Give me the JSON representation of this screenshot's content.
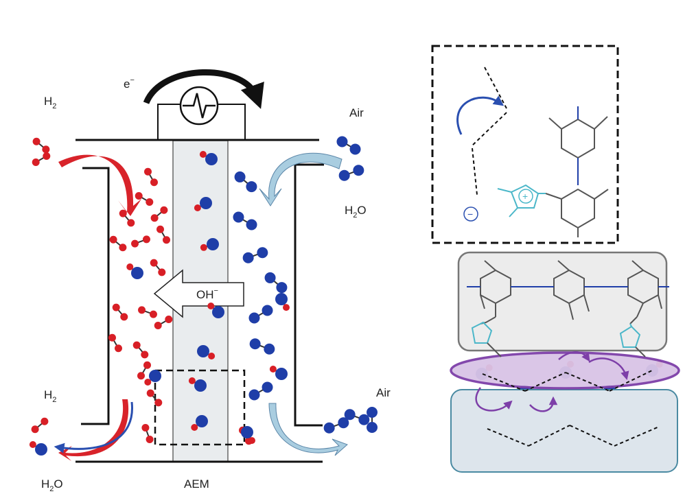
{
  "labels": {
    "h2_top": "H",
    "h2_top_sub": "2",
    "electron": "e",
    "electron_sup": "−",
    "air_top": "Air",
    "h2o_right": "H",
    "h2o_right_sub": "2",
    "h2o_right_o": "O",
    "h2_bottom": "H",
    "h2_bottom_sub": "2",
    "air_bottom": "Air",
    "h2o_bottom": "H",
    "h2o_bottom_sub": "2",
    "h2o_bottom_o": "O",
    "aem": "AEM",
    "oh": "OH",
    "oh_sup": "−",
    "cation": "+",
    "anion": "−"
  },
  "colors": {
    "oxygen": "#1f3ea8",
    "hydrogen": "#d81f26",
    "membrane": "#e9ecee",
    "hydrogen_arrow": "#d8232a",
    "air_arrow": "#a9cde0",
    "water_arrow_out": "#2a4fb0",
    "purple": "#7d3fa8",
    "purple_fill": "#d9c4e6",
    "polymer_box": "#ececec",
    "water_box": "#dde5ec",
    "teal": "#4bb7c9"
  }
}
